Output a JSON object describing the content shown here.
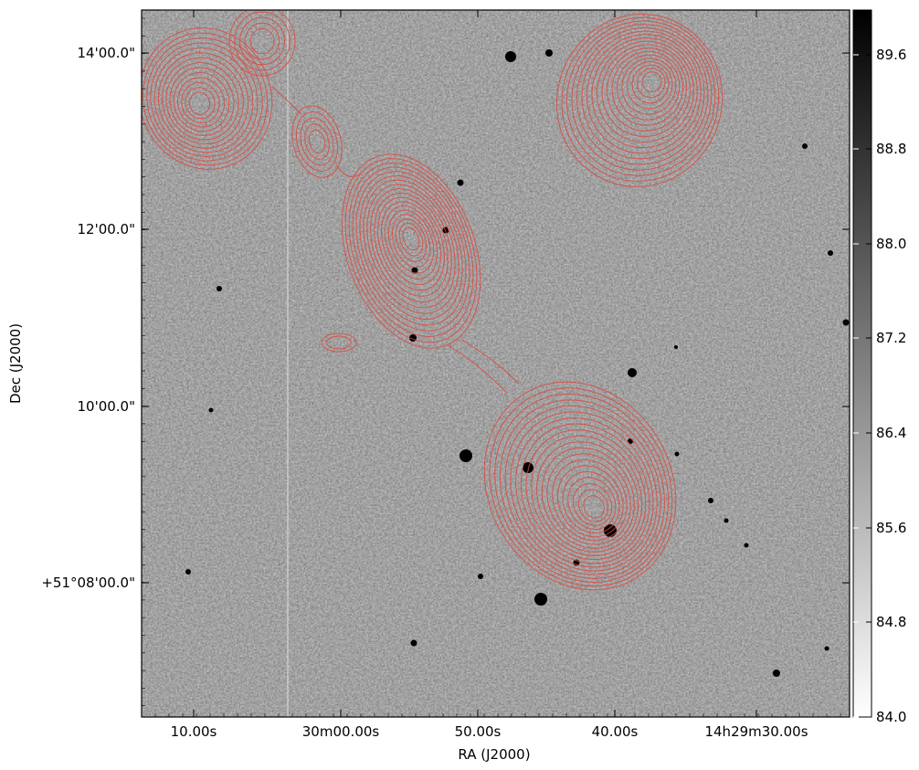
{
  "figure": {
    "axes": {
      "xlabel": "RA (J2000)",
      "ylabel": "Dec (J2000)",
      "x_ticks": [
        "10.00s",
        "30m00.00s",
        "50.00s",
        "40.00s",
        "14h29m30.00s"
      ],
      "y_ticks": [
        "14'00.0\"",
        "12'00.0\"",
        "10'00.0\"",
        "+51°08'00.0\""
      ]
    },
    "colorbar": {
      "ticks": [
        "89.6",
        "88.8",
        "88.0",
        "87.2",
        "86.4",
        "85.6",
        "84.8",
        "84.0"
      ],
      "min": 84.0,
      "max": 90.0,
      "colormap": "gray_r"
    },
    "image": {
      "background_color": "#c8c8c8",
      "contour_color": "#e0473f"
    }
  }
}
